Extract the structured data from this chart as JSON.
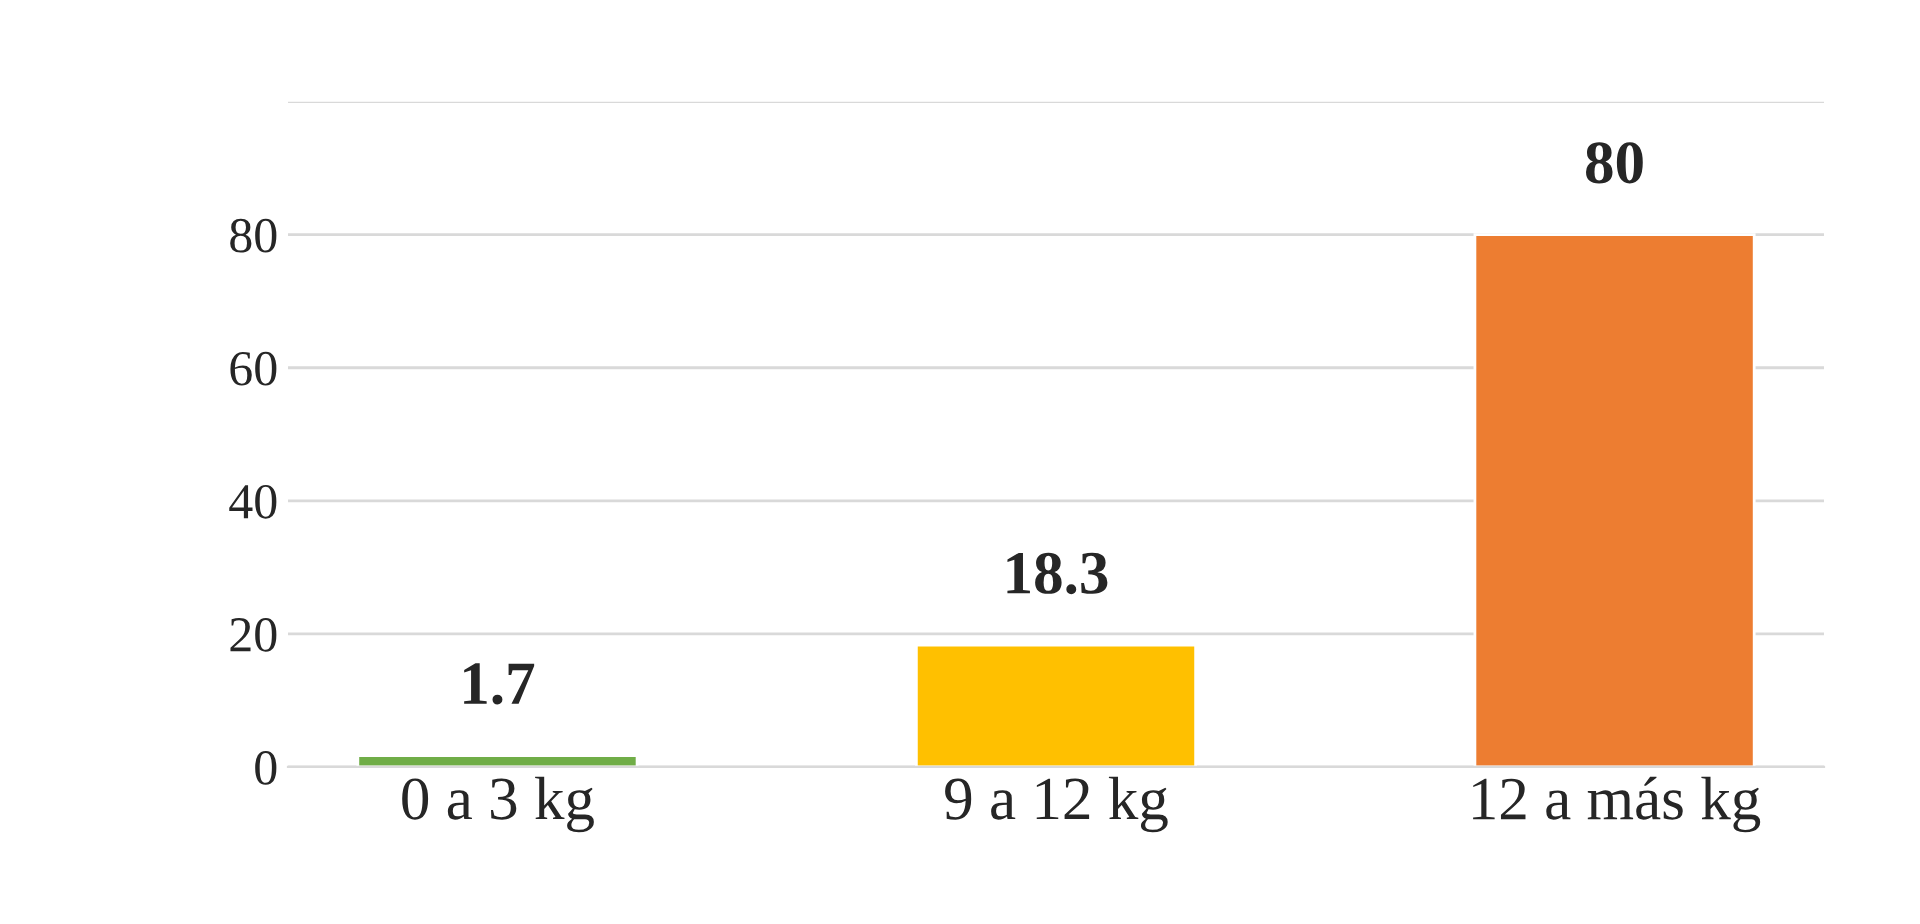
{
  "chart_data": {
    "type": "bar",
    "categories": [
      "0 a 3 kg",
      "9 a 12 kg",
      "12 a más kg"
    ],
    "values": [
      1.7,
      18.3,
      80
    ],
    "colors": [
      "#70ad47",
      "#ffc000",
      "#ed7d31"
    ],
    "ylim": [
      0,
      100
    ],
    "yticks": [
      0,
      20,
      40,
      60,
      80,
      {
        "value": 100,
        "label": null
      }
    ],
    "grid": "y",
    "data_labels": true
  }
}
